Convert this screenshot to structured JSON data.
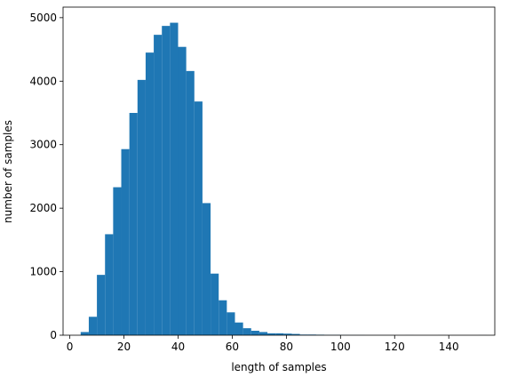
{
  "chart_data": {
    "type": "histogram",
    "xlabel": "length of samples",
    "ylabel": "number of samples",
    "bins": [
      4,
      7,
      10,
      13,
      16,
      19,
      22,
      25,
      28,
      31,
      34,
      37,
      40,
      43,
      46,
      49,
      52,
      55,
      58,
      61,
      64,
      67,
      70,
      73,
      76,
      79,
      82,
      85,
      88,
      91,
      94,
      97,
      100,
      103,
      106,
      109,
      112,
      115,
      118,
      121,
      124,
      127,
      130,
      133,
      136,
      139,
      142,
      145,
      148,
      151,
      154
    ],
    "counts": [
      50,
      290,
      950,
      1590,
      2330,
      2930,
      3500,
      4020,
      4450,
      4730,
      4870,
      4920,
      4540,
      4160,
      3680,
      2080,
      970,
      550,
      360,
      200,
      110,
      70,
      50,
      30,
      30,
      25,
      20,
      10,
      10,
      8,
      5,
      5,
      3,
      2,
      2,
      1,
      1,
      1,
      1,
      0,
      1,
      0,
      0,
      0,
      1,
      0,
      0,
      0,
      0,
      1
    ],
    "color": "#1f77b4",
    "xlim": [
      -2.5,
      157
    ],
    "xticks": [
      0,
      20,
      40,
      60,
      80,
      100,
      120,
      140
    ],
    "ylim": [
      0,
      5166
    ],
    "yticks": [
      0,
      1000,
      2000,
      3000,
      4000,
      5000
    ]
  }
}
